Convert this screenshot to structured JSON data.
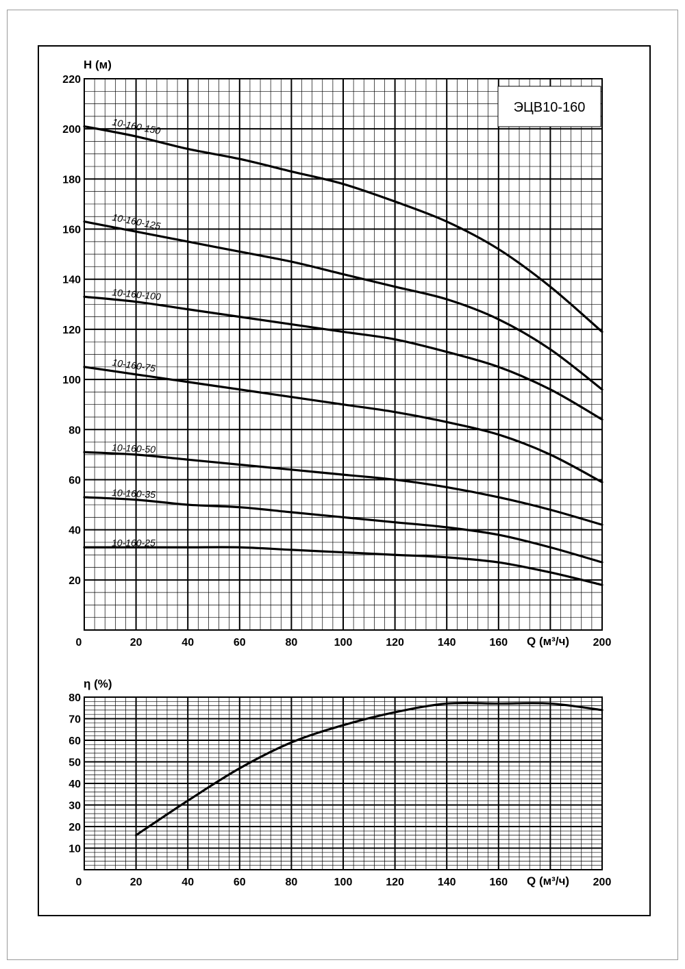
{
  "chart_data": [
    {
      "type": "line",
      "title": "ЭЦВ10-160",
      "xlabel": "Q (м³/ч)",
      "ylabel": "H (м)",
      "xlim": [
        0,
        200
      ],
      "ylim": [
        0,
        220
      ],
      "xticks": [
        0,
        20,
        40,
        60,
        80,
        100,
        120,
        140,
        160,
        200
      ],
      "yticks": [
        20,
        40,
        60,
        80,
        100,
        120,
        140,
        160,
        180,
        200,
        220
      ],
      "grid": true,
      "series": [
        {
          "name": "10-160-150",
          "x": [
            0,
            20,
            40,
            60,
            80,
            100,
            120,
            140,
            160,
            180,
            200
          ],
          "values": [
            201,
            197,
            192,
            188,
            183,
            178,
            171,
            163,
            152,
            137,
            119
          ]
        },
        {
          "name": "10-160-125",
          "x": [
            0,
            20,
            40,
            60,
            80,
            100,
            120,
            140,
            160,
            180,
            200
          ],
          "values": [
            163,
            159,
            155,
            151,
            147,
            142,
            137,
            132,
            124,
            112,
            96
          ]
        },
        {
          "name": "10-160-100",
          "x": [
            0,
            20,
            40,
            60,
            80,
            100,
            120,
            140,
            160,
            180,
            200
          ],
          "values": [
            133,
            131,
            128,
            125,
            122,
            119,
            116,
            111,
            105,
            96,
            84
          ]
        },
        {
          "name": "10-160-75",
          "x": [
            0,
            20,
            40,
            60,
            80,
            100,
            120,
            140,
            160,
            180,
            200
          ],
          "values": [
            105,
            102,
            99,
            96,
            93,
            90,
            87,
            83,
            78,
            70,
            59
          ]
        },
        {
          "name": "10-160-50",
          "x": [
            0,
            20,
            40,
            60,
            80,
            100,
            120,
            140,
            160,
            180,
            200
          ],
          "values": [
            71,
            70,
            68,
            66,
            64,
            62,
            60,
            57,
            53,
            48,
            42
          ]
        },
        {
          "name": "10-160-35",
          "x": [
            0,
            20,
            40,
            60,
            80,
            100,
            120,
            140,
            160,
            180,
            200
          ],
          "values": [
            53,
            52,
            50,
            49,
            47,
            45,
            43,
            41,
            38,
            33,
            27
          ]
        },
        {
          "name": "10-160-25",
          "x": [
            0,
            20,
            40,
            60,
            80,
            100,
            120,
            140,
            160,
            180,
            200
          ],
          "values": [
            33,
            33,
            33,
            33,
            32,
            31,
            30,
            29,
            27,
            23,
            18
          ]
        }
      ]
    },
    {
      "type": "line",
      "title": "",
      "xlabel": "Q (м³/ч)",
      "ylabel": "η (%)",
      "xlim": [
        0,
        200
      ],
      "ylim": [
        0,
        80
      ],
      "xticks": [
        0,
        20,
        40,
        60,
        80,
        100,
        120,
        140,
        160,
        200
      ],
      "yticks": [
        10,
        20,
        30,
        40,
        50,
        60,
        70,
        80
      ],
      "grid": true,
      "series": [
        {
          "name": "η",
          "x": [
            20,
            40,
            60,
            80,
            100,
            120,
            140,
            160,
            180,
            200
          ],
          "values": [
            16,
            32,
            47,
            59,
            67,
            73,
            77,
            77,
            77,
            74
          ]
        }
      ]
    }
  ]
}
